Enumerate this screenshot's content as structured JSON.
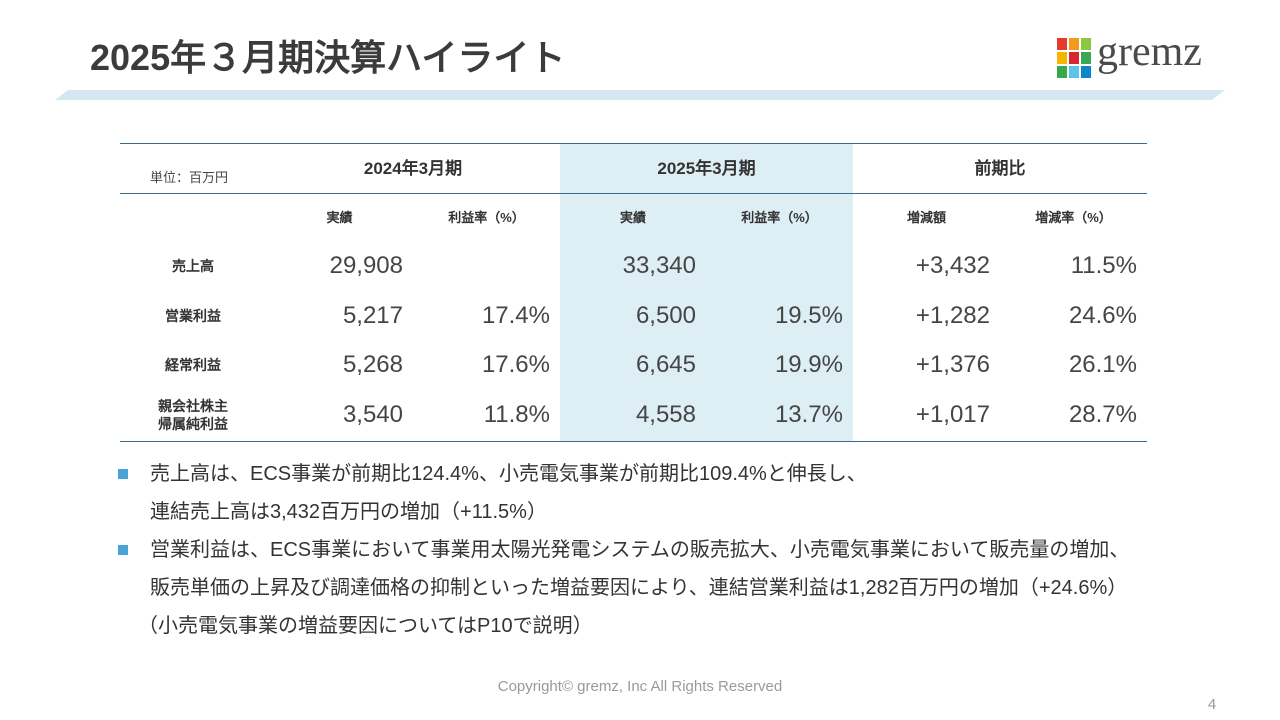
{
  "title": "2025年３月期決算ハイライト",
  "logo": {
    "text": "gremz",
    "squares": [
      "#e53a2f",
      "#f39a1e",
      "#8dc63f",
      "#f7b500",
      "#d7262f",
      "#3aa757",
      "#38a94a",
      "#5ec3eb",
      "#0f86c8"
    ]
  },
  "colors": {
    "title_band": "#d5e8ef",
    "highlight_column": "#ddeef4",
    "table_rule": "#3a6b8c",
    "bullet_marker": "#4aa3d4"
  },
  "table": {
    "unit": "単位：百万円",
    "periods": [
      {
        "label": "2024年3月期",
        "columns": [
          "実績",
          "利益率（%）"
        ]
      },
      {
        "label": "2025年3月期",
        "columns": [
          "実績",
          "利益率（%）"
        ]
      },
      {
        "label": "前期比",
        "columns": [
          "増減額",
          "増減率（%）"
        ]
      }
    ],
    "rows": [
      {
        "label": [
          "売上高"
        ],
        "values": [
          "29,908",
          "",
          "33,340",
          "",
          "+3,432",
          "11.5%"
        ]
      },
      {
        "label": [
          "営業利益"
        ],
        "values": [
          "5,217",
          "17.4%",
          "6,500",
          "19.5%",
          "+1,282",
          "24.6%"
        ]
      },
      {
        "label": [
          "経常利益"
        ],
        "values": [
          "5,268",
          "17.6%",
          "6,645",
          "19.9%",
          "+1,376",
          "26.1%"
        ]
      },
      {
        "label": [
          "親会社株主",
          "帰属純利益"
        ],
        "values": [
          "3,540",
          "11.8%",
          "4,558",
          "13.7%",
          "+1,017",
          "28.7%"
        ]
      }
    ]
  },
  "notes": [
    {
      "lines": [
        "売上高は、ECS事業が前期比124.4%、小売電気事業が前期比109.4%と伸長し、",
        "連結売上高は3,432百万円の増加（+11.5%）"
      ]
    },
    {
      "lines": [
        "営業利益は、ECS事業において事業用太陽光発電システムの販売拡大、小売電気事業において販売量の増加、",
        "販売単価の上昇及び調達価格の抑制といった増益要因により、連結営業利益は1,282百万円の増加（+24.6%）",
        "（小売電気事業の増益要因についてはP10で説明）"
      ]
    }
  ],
  "footer": {
    "copyright": "Copyright© gremz, Inc All Rights Reserved",
    "page_number": "4"
  }
}
